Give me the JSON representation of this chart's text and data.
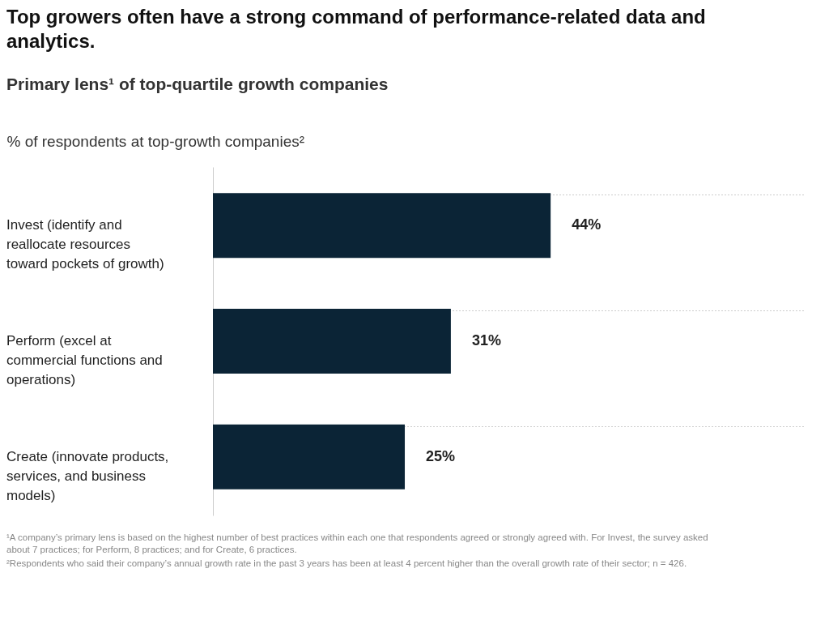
{
  "chart_data": {
    "type": "bar",
    "orientation": "horizontal",
    "title": "Top growers often have a strong command of performance-related data and analytics.",
    "subtitle": "Primary lens¹ of top-quartile growth companies",
    "xlabel": "% of respondents at top-growth companies²",
    "categories": [
      "Invest (identify and reallocate resources toward pockets of growth)",
      "Perform (excel at commercial functions and operations)",
      "Create (innovate products, services, and business models)"
    ],
    "values": [
      44,
      31,
      25
    ],
    "value_labels": [
      "44%",
      "31%",
      "25%"
    ],
    "color": "#0b2436",
    "grid": "y",
    "annotations": [
      "¹A company’s primary lens is based on the highest number of best practices within each one that respondents agreed or strongly agreed with. For Invest, the survey asked about 7 practices; for Perform, 8 practices; and for Create, 6 practices.",
      "²Respondents who said their company’s annual growth rate in the past 3 years has been at least 4 percent higher than the overall growth rate of their sector; n = 426."
    ]
  }
}
